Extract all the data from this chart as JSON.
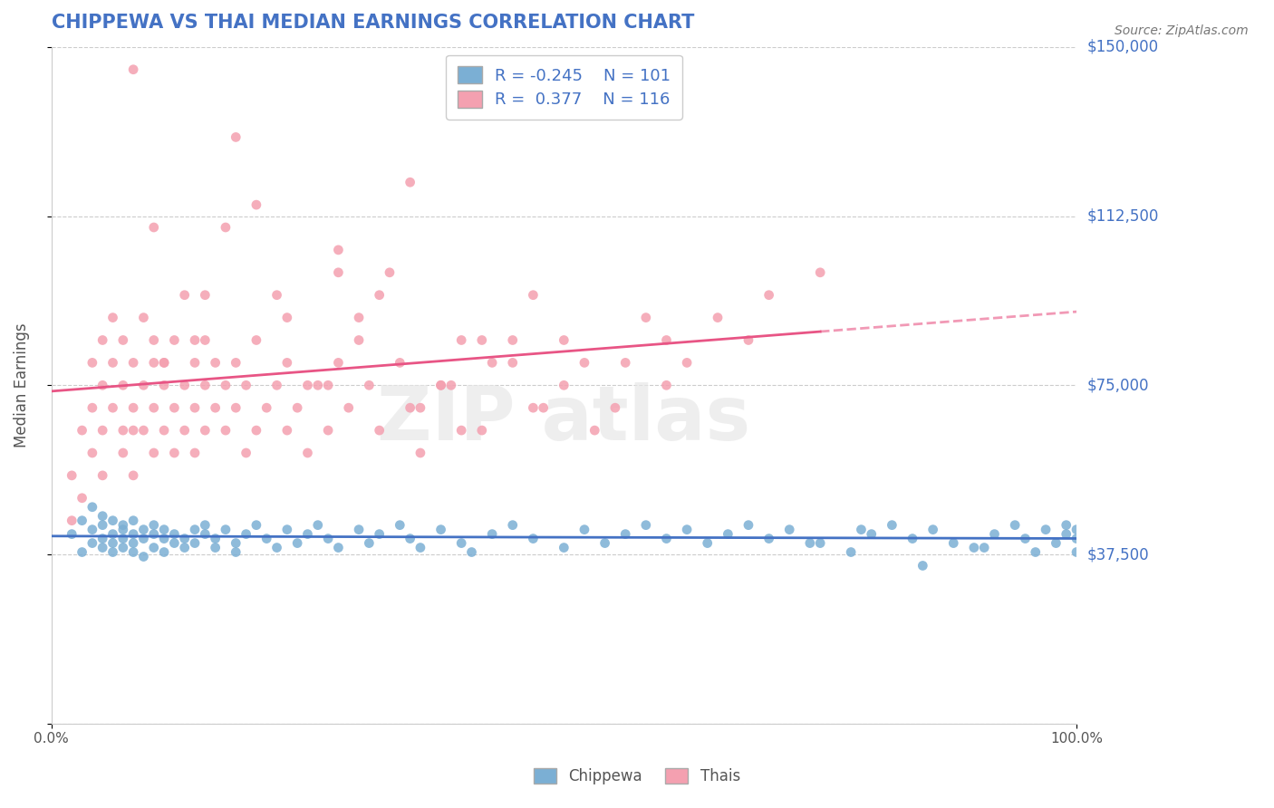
{
  "title": "CHIPPEWA VS THAI MEDIAN EARNINGS CORRELATION CHART",
  "source_text": "Source: ZipAtlas.com",
  "xlabel": "",
  "ylabel": "Median Earnings",
  "xlim": [
    0,
    1
  ],
  "ylim": [
    0,
    150000
  ],
  "yticks": [
    0,
    37500,
    75000,
    112500,
    150000
  ],
  "ytick_labels": [
    "",
    "$37,500",
    "$75,000",
    "$112,500",
    "$150,000"
  ],
  "xtick_labels": [
    "0.0%",
    "100.0%"
  ],
  "background_color": "#ffffff",
  "grid_color": "#cccccc",
  "title_color": "#4472c4",
  "axis_label_color": "#555555",
  "chippewa_color": "#7bafd4",
  "thais_color": "#f4a0b0",
  "chippewa_line_color": "#4472c4",
  "thais_line_color": "#e85585",
  "ytick_color": "#4472c4",
  "xtick_color": "#555555",
  "R_chippewa": -0.245,
  "N_chippewa": 101,
  "R_thais": 0.377,
  "N_thais": 116,
  "chippewa_points_x": [
    0.02,
    0.03,
    0.03,
    0.04,
    0.04,
    0.04,
    0.05,
    0.05,
    0.05,
    0.05,
    0.06,
    0.06,
    0.06,
    0.06,
    0.07,
    0.07,
    0.07,
    0.07,
    0.08,
    0.08,
    0.08,
    0.08,
    0.09,
    0.09,
    0.09,
    0.1,
    0.1,
    0.1,
    0.11,
    0.11,
    0.11,
    0.12,
    0.12,
    0.13,
    0.13,
    0.14,
    0.14,
    0.15,
    0.15,
    0.16,
    0.16,
    0.17,
    0.18,
    0.18,
    0.19,
    0.2,
    0.21,
    0.22,
    0.23,
    0.24,
    0.25,
    0.26,
    0.27,
    0.28,
    0.3,
    0.31,
    0.32,
    0.34,
    0.35,
    0.36,
    0.38,
    0.4,
    0.41,
    0.43,
    0.45,
    0.47,
    0.5,
    0.52,
    0.54,
    0.56,
    0.58,
    0.6,
    0.62,
    0.64,
    0.66,
    0.68,
    0.7,
    0.72,
    0.75,
    0.78,
    0.8,
    0.82,
    0.84,
    0.86,
    0.88,
    0.9,
    0.92,
    0.94,
    0.95,
    0.96,
    0.97,
    0.98,
    0.99,
    0.99,
    1.0,
    1.0,
    1.0,
    0.74,
    0.85,
    0.79,
    0.91
  ],
  "chippewa_points_y": [
    42000,
    38000,
    45000,
    40000,
    43000,
    48000,
    41000,
    44000,
    39000,
    46000,
    42000,
    38000,
    45000,
    40000,
    43000,
    41000,
    39000,
    44000,
    38000,
    42000,
    45000,
    40000,
    41000,
    43000,
    37000,
    42000,
    39000,
    44000,
    41000,
    38000,
    43000,
    40000,
    42000,
    41000,
    39000,
    43000,
    40000,
    42000,
    44000,
    41000,
    39000,
    43000,
    40000,
    38000,
    42000,
    44000,
    41000,
    39000,
    43000,
    40000,
    42000,
    44000,
    41000,
    39000,
    43000,
    40000,
    42000,
    44000,
    41000,
    39000,
    43000,
    40000,
    38000,
    42000,
    44000,
    41000,
    39000,
    43000,
    40000,
    42000,
    44000,
    41000,
    43000,
    40000,
    42000,
    44000,
    41000,
    43000,
    40000,
    38000,
    42000,
    44000,
    41000,
    43000,
    40000,
    39000,
    42000,
    44000,
    41000,
    38000,
    43000,
    40000,
    42000,
    44000,
    38000,
    41000,
    43000,
    40000,
    35000,
    43000,
    39000
  ],
  "thais_points_x": [
    0.02,
    0.02,
    0.03,
    0.03,
    0.04,
    0.04,
    0.04,
    0.05,
    0.05,
    0.05,
    0.05,
    0.06,
    0.06,
    0.06,
    0.07,
    0.07,
    0.07,
    0.08,
    0.08,
    0.08,
    0.08,
    0.09,
    0.09,
    0.09,
    0.1,
    0.1,
    0.1,
    0.1,
    0.11,
    0.11,
    0.11,
    0.12,
    0.12,
    0.12,
    0.13,
    0.13,
    0.14,
    0.14,
    0.14,
    0.15,
    0.15,
    0.15,
    0.16,
    0.16,
    0.17,
    0.17,
    0.18,
    0.18,
    0.19,
    0.19,
    0.2,
    0.2,
    0.21,
    0.22,
    0.23,
    0.23,
    0.24,
    0.25,
    0.26,
    0.27,
    0.28,
    0.29,
    0.3,
    0.31,
    0.32,
    0.34,
    0.35,
    0.36,
    0.38,
    0.4,
    0.42,
    0.45,
    0.47,
    0.5,
    0.53,
    0.56,
    0.6,
    0.65,
    0.7,
    0.75,
    0.35,
    0.25,
    0.15,
    0.42,
    0.52,
    0.28,
    0.18,
    0.08,
    0.55,
    0.3,
    0.45,
    0.22,
    0.38,
    0.1,
    0.62,
    0.33,
    0.48,
    0.2,
    0.58,
    0.4,
    0.13,
    0.27,
    0.5,
    0.07,
    0.43,
    0.32,
    0.6,
    0.17,
    0.36,
    0.23,
    0.68,
    0.11,
    0.47,
    0.28,
    0.39,
    0.14
  ],
  "thais_points_y": [
    45000,
    55000,
    65000,
    50000,
    70000,
    80000,
    60000,
    75000,
    55000,
    85000,
    65000,
    90000,
    70000,
    80000,
    75000,
    60000,
    85000,
    70000,
    65000,
    80000,
    55000,
    90000,
    75000,
    65000,
    80000,
    70000,
    60000,
    85000,
    75000,
    65000,
    80000,
    70000,
    60000,
    85000,
    75000,
    65000,
    80000,
    70000,
    60000,
    75000,
    65000,
    85000,
    70000,
    80000,
    75000,
    65000,
    80000,
    70000,
    60000,
    75000,
    65000,
    85000,
    70000,
    75000,
    65000,
    80000,
    70000,
    60000,
    75000,
    65000,
    80000,
    70000,
    85000,
    75000,
    65000,
    80000,
    70000,
    60000,
    75000,
    65000,
    85000,
    80000,
    70000,
    75000,
    65000,
    80000,
    85000,
    90000,
    95000,
    100000,
    120000,
    75000,
    95000,
    65000,
    80000,
    105000,
    130000,
    145000,
    70000,
    90000,
    85000,
    95000,
    75000,
    110000,
    80000,
    100000,
    70000,
    115000,
    90000,
    85000,
    95000,
    75000,
    85000,
    65000,
    80000,
    95000,
    75000,
    110000,
    70000,
    90000,
    85000,
    80000,
    95000,
    100000,
    75000,
    85000
  ]
}
